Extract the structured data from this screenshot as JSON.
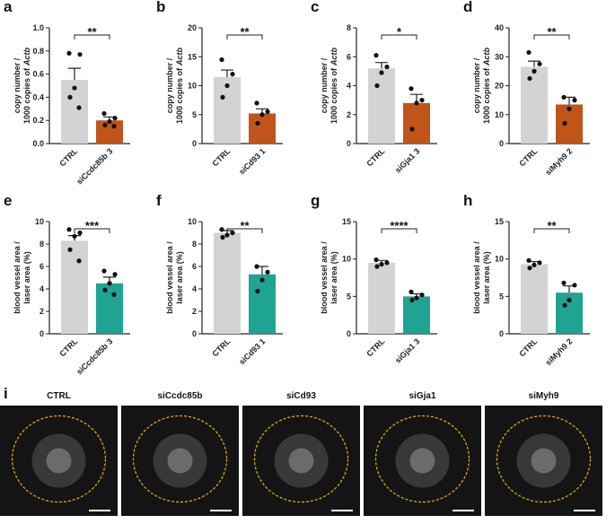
{
  "chart_data": [
    {
      "type": "bar",
      "panel": "a",
      "ylabel": [
        "copy number /",
        "1000 copies of",
        "Actb"
      ],
      "categories": [
        "CTRL",
        "siCcdc85b 3"
      ],
      "values": [
        0.55,
        0.2
      ],
      "errors": [
        0.1,
        0.03
      ],
      "points": [
        [
          0.78,
          0.77,
          0.48,
          0.4,
          0.31
        ],
        [
          0.26,
          0.22,
          0.19,
          0.16,
          0.15
        ]
      ],
      "colors": [
        "#d3d3d3",
        "#c0541a"
      ],
      "ylim": [
        0,
        1.0
      ],
      "yticks": [
        {
          "value": 0,
          "label": "0.0"
        },
        0.2,
        0.4,
        0.6,
        0.8,
        {
          "value": 1.0,
          "label": "1.0"
        }
      ],
      "significance": "**"
    },
    {
      "type": "bar",
      "panel": "b",
      "ylabel": [
        "copy number /",
        "1000 copies of",
        "Actb"
      ],
      "categories": [
        "CTRL",
        "siCd93 1"
      ],
      "values": [
        11.5,
        5.2
      ],
      "errors": [
        1.2,
        0.8
      ],
      "points": [
        [
          14.5,
          12,
          10,
          8
        ],
        [
          7,
          5.5,
          5,
          3.5
        ]
      ],
      "colors": [
        "#d3d3d3",
        "#c0541a"
      ],
      "ylim": [
        0,
        20
      ],
      "yticks": [
        0,
        5,
        10,
        15,
        20
      ],
      "significance": "**"
    },
    {
      "type": "bar",
      "panel": "c",
      "ylabel": [
        "copy number /",
        "1000 copies of",
        "Actb"
      ],
      "categories": [
        "CTRL",
        "siGja1 3"
      ],
      "values": [
        5.2,
        2.8
      ],
      "errors": [
        0.4,
        0.6
      ],
      "points": [
        [
          6.1,
          5.3,
          4.9,
          4.0
        ],
        [
          3.8,
          3.0,
          2.8,
          1.0
        ]
      ],
      "colors": [
        "#d3d3d3",
        "#c0541a"
      ],
      "ylim": [
        0,
        8
      ],
      "yticks": [
        0,
        2,
        4,
        6,
        8
      ],
      "significance": "*"
    },
    {
      "type": "bar",
      "panel": "d",
      "ylabel": [
        "copy number /",
        "1000 copies of",
        "Actb"
      ],
      "categories": [
        "CTRL",
        "siMyh9 2"
      ],
      "values": [
        26.5,
        13.5
      ],
      "errors": [
        2,
        2.5
      ],
      "points": [
        [
          31.5,
          27.5,
          25,
          22.5
        ],
        [
          16,
          15,
          12,
          7
        ]
      ],
      "colors": [
        "#d3d3d3",
        "#c0541a"
      ],
      "ylim": [
        0,
        40
      ],
      "yticks": [
        0,
        10,
        20,
        30,
        40
      ],
      "significance": "**"
    },
    {
      "type": "bar",
      "panel": "e",
      "ylabel": [
        "blood vessel area /",
        "laser area (%)"
      ],
      "categories": [
        "CTRL",
        "siCcdc85b 3"
      ],
      "values": [
        8.3,
        4.5
      ],
      "errors": [
        0.45,
        0.55
      ],
      "points": [
        [
          9.3,
          9.0,
          8.7,
          7.5,
          6.5
        ],
        [
          5.6,
          5.3,
          4.5,
          3.9,
          3.5
        ]
      ],
      "colors": [
        "#d3d3d3",
        "#1fa393"
      ],
      "ylim": [
        0,
        10
      ],
      "yticks": [
        0,
        2,
        4,
        6,
        8,
        10
      ],
      "significance": "***"
    },
    {
      "type": "bar",
      "panel": "f",
      "ylabel": [
        "blood vessel area /",
        "laser area (%)"
      ],
      "categories": [
        "CTRL",
        "siCd93 1"
      ],
      "values": [
        9.0,
        5.3
      ],
      "errors": [
        0.2,
        0.7
      ],
      "points": [
        [
          9.3,
          9.0,
          8.8,
          8.6
        ],
        [
          6.0,
          5.5,
          4.8,
          3.8
        ]
      ],
      "colors": [
        "#d3d3d3",
        "#1fa393"
      ],
      "ylim": [
        0,
        10
      ],
      "yticks": [
        0,
        2,
        4,
        6,
        8,
        10
      ],
      "significance": "**"
    },
    {
      "type": "bar",
      "panel": "g",
      "ylabel": [
        "blood vessel area /",
        "laser area (%)"
      ],
      "categories": [
        "CTRL",
        "siGja1 3"
      ],
      "values": [
        9.5,
        5.0
      ],
      "errors": [
        0.3,
        0.35
      ],
      "points": [
        [
          9.9,
          9.5,
          9.3,
          9.0
        ],
        [
          5.6,
          5.2,
          4.8,
          4.5
        ]
      ],
      "colors": [
        "#d3d3d3",
        "#1fa393"
      ],
      "ylim": [
        0,
        15
      ],
      "yticks": [
        0,
        5,
        10,
        15
      ],
      "significance": "****"
    },
    {
      "type": "bar",
      "panel": "h",
      "ylabel": [
        "blood vessel area /",
        "laser area (%)"
      ],
      "categories": [
        "CTRL",
        "siMyh9 2"
      ],
      "values": [
        9.3,
        5.5
      ],
      "errors": [
        0.35,
        0.9
      ],
      "points": [
        [
          9.8,
          9.5,
          9.2,
          8.8
        ],
        [
          6.8,
          6.5,
          4.5,
          3.8
        ]
      ],
      "colors": [
        "#d3d3d3",
        "#1fa393"
      ],
      "ylim": [
        0,
        15
      ],
      "yticks": [
        0,
        5,
        10,
        15
      ],
      "significance": "**"
    }
  ],
  "image_panel": {
    "label": "i",
    "images": [
      "CTRL",
      "siCcdc85b",
      "siCd93",
      "siGja1",
      "siMyh9"
    ]
  }
}
